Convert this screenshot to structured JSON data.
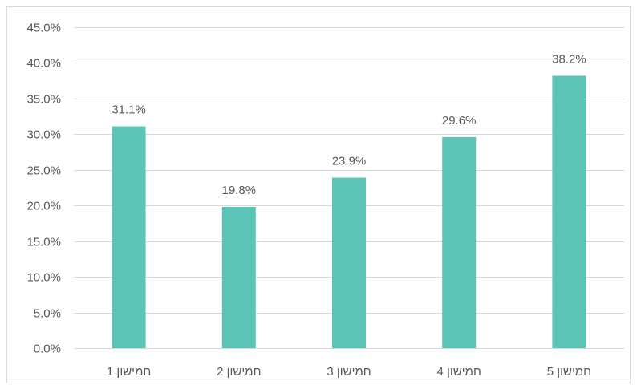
{
  "chart_data": {
    "type": "bar",
    "title": "",
    "xlabel": "",
    "ylabel": "",
    "categories": [
      "חמישון 1",
      "חמישון 2",
      "חמישון 3",
      "חמישון 4",
      "חמישון 5"
    ],
    "values": [
      31.1,
      19.8,
      23.9,
      29.6,
      38.2
    ],
    "data_labels": [
      "31.1%",
      "19.8%",
      "23.9%",
      "29.6%",
      "38.2%"
    ],
    "ylim": [
      0,
      45
    ],
    "y_ticks": [
      0,
      5,
      10,
      15,
      20,
      25,
      30,
      35,
      40,
      45
    ],
    "y_tick_labels": [
      "0.0%",
      "5.0%",
      "10.0%",
      "15.0%",
      "20.0%",
      "25.0%",
      "30.0%",
      "35.0%",
      "40.0%",
      "45.0%"
    ],
    "grid": true,
    "legend": "none",
    "bar_color": "#5cc4b6"
  }
}
